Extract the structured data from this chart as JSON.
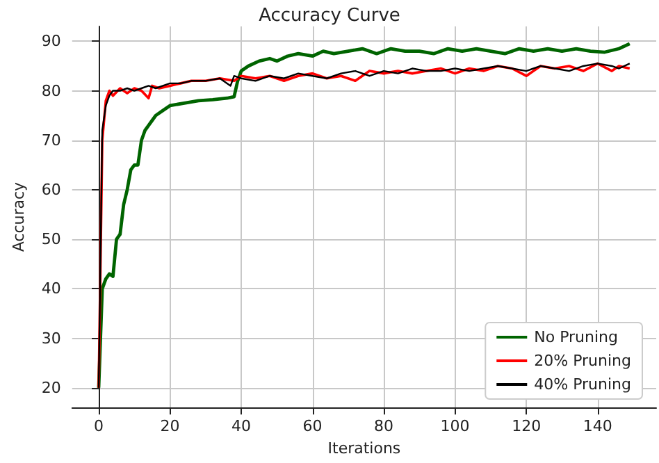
{
  "chart_data": {
    "type": "line",
    "title": "Accuracy Curve",
    "xlabel": "Iterations",
    "ylabel": "Accuracy",
    "xlim": [
      -7.45,
      156.45
    ],
    "xticks": [
      0,
      20,
      40,
      60,
      80,
      100,
      120,
      140
    ],
    "ylim": [
      16,
      93
    ],
    "yticks": [
      20,
      30,
      40,
      50,
      60,
      70,
      80,
      90
    ],
    "grid": true,
    "legend": "bottom right",
    "marker": "none",
    "line_style": "solid",
    "series": [
      {
        "name": "No Pruning",
        "color": "#006400",
        "x": [
          0,
          1,
          2,
          3,
          4,
          5,
          6,
          7,
          8,
          9,
          10,
          11,
          12,
          13,
          14,
          15,
          16,
          18,
          20,
          24,
          28,
          32,
          36,
          38,
          39,
          40,
          42,
          45,
          48,
          50,
          53,
          56,
          60,
          63,
          66,
          70,
          74,
          78,
          82,
          86,
          90,
          94,
          98,
          102,
          106,
          110,
          114,
          118,
          122,
          126,
          130,
          134,
          138,
          142,
          146,
          149
        ],
        "values": [
          20,
          40,
          42,
          43,
          42.5,
          50,
          51,
          57,
          60,
          64,
          65,
          65,
          70,
          72,
          73,
          74,
          75,
          76,
          77,
          77.5,
          78,
          78.2,
          78.5,
          78.8,
          82,
          84,
          85,
          86,
          86.5,
          86,
          87,
          87.5,
          87,
          88,
          87.5,
          88,
          88.5,
          87.5,
          88.5,
          88,
          88,
          87.5,
          88.5,
          88,
          88.5,
          88,
          87.5,
          88.5,
          88,
          88.5,
          88,
          88.5,
          88,
          87.8,
          88.5,
          89.5
        ]
      },
      {
        "name": "20% Pruning",
        "color": "#ff0000",
        "x": [
          0,
          1,
          2,
          3,
          4,
          6,
          8,
          10,
          12,
          14,
          15,
          17,
          20,
          23,
          26,
          30,
          34,
          38,
          40,
          44,
          48,
          52,
          56,
          60,
          64,
          68,
          72,
          76,
          80,
          84,
          88,
          92,
          96,
          100,
          104,
          108,
          112,
          116,
          120,
          124,
          128,
          132,
          136,
          140,
          144,
          146,
          149
        ],
        "values": [
          20,
          70,
          78,
          80,
          79,
          80.5,
          79.5,
          80.5,
          80,
          78.5,
          81,
          80.5,
          81,
          81.5,
          82,
          82,
          82.5,
          82,
          83,
          82.5,
          83,
          82,
          83,
          83.5,
          82.5,
          83,
          82,
          84,
          83.5,
          84,
          83.5,
          84,
          84.5,
          83.5,
          84.5,
          84,
          85,
          84.5,
          83,
          85,
          84.5,
          85,
          84,
          85.5,
          84,
          85,
          84.5
        ]
      },
      {
        "name": "40% Pruning",
        "color": "#000000",
        "x": [
          0,
          1,
          2,
          3,
          4,
          6,
          8,
          10,
          12,
          14,
          16,
          18,
          20,
          23,
          26,
          30,
          34,
          37,
          38,
          40,
          44,
          48,
          52,
          56,
          60,
          64,
          68,
          72,
          76,
          80,
          84,
          88,
          92,
          96,
          100,
          104,
          108,
          112,
          116,
          120,
          124,
          128,
          132,
          136,
          140,
          144,
          146,
          149
        ],
        "values": [
          20,
          72,
          77,
          79,
          80,
          80,
          80.5,
          80,
          80.5,
          81,
          80.5,
          81,
          81.5,
          81.5,
          82,
          82,
          82.5,
          81,
          83,
          82.5,
          82,
          83,
          82.5,
          83.5,
          83,
          82.5,
          83.5,
          84,
          83,
          84,
          83.5,
          84.5,
          84,
          84,
          84.5,
          84,
          84.5,
          85,
          84.5,
          84,
          85,
          84.5,
          84,
          85,
          85.5,
          85,
          84.5,
          85.5
        ]
      }
    ]
  }
}
